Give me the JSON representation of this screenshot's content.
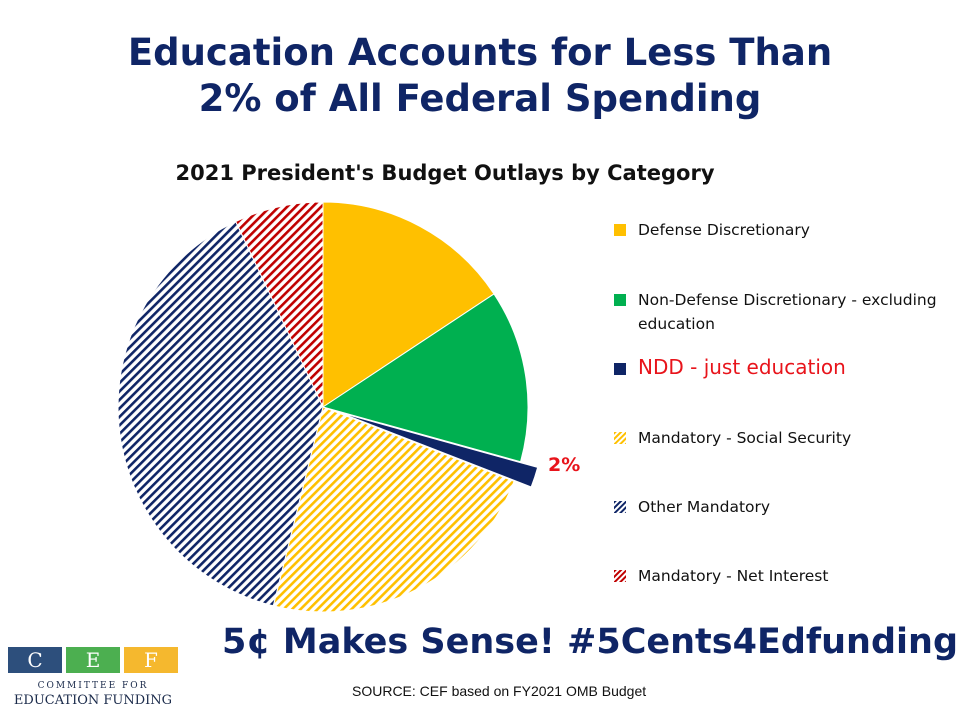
{
  "header": {
    "title_line1": "Education Accounts for Less Than",
    "title_line2": "2% of All Federal Spending"
  },
  "chart_data": {
    "type": "pie",
    "title": "2021 President's Budget Outlays by Category",
    "legend_position": "right",
    "slices": [
      {
        "name": "Defense Discretionary",
        "value": 15.7,
        "color": "#ffc000",
        "pattern": "solid"
      },
      {
        "name": "Non-Defense Discretionary - excluding education",
        "value": 13.6,
        "color": "#00b050",
        "pattern": "solid"
      },
      {
        "name": "NDD - just education",
        "value": 1.6,
        "color": "#0f2566",
        "pattern": "solid",
        "exploded": true
      },
      {
        "name": "Mandatory - Social Security",
        "value": 23.0,
        "color": "#ffc000",
        "pattern": "hatch"
      },
      {
        "name": "Other Mandatory",
        "value": 39.1,
        "color": "#0f2566",
        "pattern": "hatch"
      },
      {
        "name": "Mandatory - Net Interest",
        "value": 7.0,
        "color": "#c00000",
        "pattern": "hatch"
      }
    ],
    "annotation": "2%"
  },
  "slogan": "5¢ Makes Sense!  #5Cents4Edfunding",
  "source": "SOURCE: CEF based on FY2021 OMB Budget",
  "logo": {
    "letters": [
      "C",
      "E",
      "F"
    ],
    "colors": [
      "#2d4f7c",
      "#4caf50",
      "#f5b82e"
    ],
    "line1": "COMMITTEE FOR",
    "line2": "EDUCATION FUNDING"
  }
}
